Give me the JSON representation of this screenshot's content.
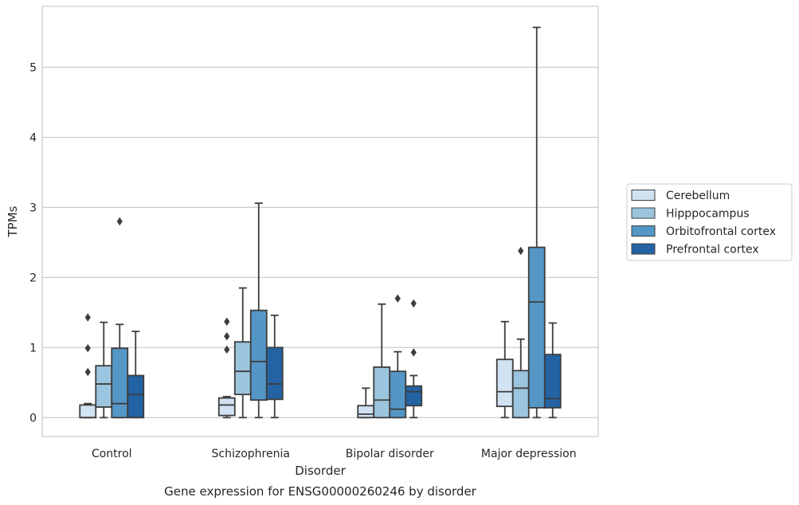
{
  "caption": "Gene expression for ENSG00000260246 by disorder",
  "chart_data": {
    "type": "box",
    "title": "",
    "xlabel": "Disorder",
    "ylabel": "TPMs",
    "ylim": [
      -0.27,
      5.87
    ],
    "yticks": [
      0,
      1,
      2,
      3,
      4,
      5
    ],
    "grid": "horizontal",
    "legend_position": "right",
    "categories": [
      "Control",
      "Schizophrenia",
      "Bipolar disorder",
      "Major depression"
    ],
    "series": [
      {
        "name": "Cerebellum",
        "color": "#d1e2f2",
        "boxes": [
          {
            "whisker_low": 0.0,
            "q1": 0.0,
            "median": 0.0,
            "q3": 0.18,
            "whisker_high": 0.2,
            "outliers": [
              0.65,
              0.99,
              1.43
            ]
          },
          {
            "whisker_low": 0.0,
            "q1": 0.03,
            "median": 0.18,
            "q3": 0.28,
            "whisker_high": 0.3,
            "outliers": [
              0.97,
              1.16,
              1.37
            ]
          },
          {
            "whisker_low": 0.0,
            "q1": 0.0,
            "median": 0.05,
            "q3": 0.17,
            "whisker_high": 0.42,
            "outliers": []
          },
          {
            "whisker_low": 0.0,
            "q1": 0.16,
            "median": 0.37,
            "q3": 0.83,
            "whisker_high": 1.37,
            "outliers": []
          }
        ]
      },
      {
        "name": "Hipppocampus",
        "color": "#9bc5de",
        "boxes": [
          {
            "whisker_low": 0.0,
            "q1": 0.15,
            "median": 0.48,
            "q3": 0.74,
            "whisker_high": 1.36,
            "outliers": []
          },
          {
            "whisker_low": 0.0,
            "q1": 0.33,
            "median": 0.66,
            "q3": 1.08,
            "whisker_high": 1.85,
            "outliers": []
          },
          {
            "whisker_low": 0.0,
            "q1": 0.0,
            "median": 0.25,
            "q3": 0.72,
            "whisker_high": 1.62,
            "outliers": []
          },
          {
            "whisker_low": 0.0,
            "q1": 0.0,
            "median": 0.42,
            "q3": 0.67,
            "whisker_high": 1.12,
            "outliers": [
              2.38
            ]
          }
        ]
      },
      {
        "name": "Orbitofrontal cortex",
        "color": "#5497c6",
        "boxes": [
          {
            "whisker_low": 0.0,
            "q1": 0.0,
            "median": 0.2,
            "q3": 0.99,
            "whisker_high": 1.33,
            "outliers": [
              2.8
            ]
          },
          {
            "whisker_low": 0.0,
            "q1": 0.25,
            "median": 0.8,
            "q3": 1.53,
            "whisker_high": 3.06,
            "outliers": []
          },
          {
            "whisker_low": 0.0,
            "q1": 0.0,
            "median": 0.12,
            "q3": 0.66,
            "whisker_high": 0.94,
            "outliers": [
              1.7
            ]
          },
          {
            "whisker_low": 0.0,
            "q1": 0.14,
            "median": 1.65,
            "q3": 2.43,
            "whisker_high": 5.57,
            "outliers": []
          }
        ]
      },
      {
        "name": "Prefrontal cortex",
        "color": "#2363a3",
        "boxes": [
          {
            "whisker_low": 0.0,
            "q1": 0.0,
            "median": 0.33,
            "q3": 0.6,
            "whisker_high": 1.23,
            "outliers": []
          },
          {
            "whisker_low": 0.0,
            "q1": 0.26,
            "median": 0.48,
            "q3": 1.0,
            "whisker_high": 1.46,
            "outliers": []
          },
          {
            "whisker_low": 0.0,
            "q1": 0.17,
            "median": 0.37,
            "q3": 0.45,
            "whisker_high": 0.6,
            "outliers": [
              0.93,
              1.63
            ]
          },
          {
            "whisker_low": 0.0,
            "q1": 0.14,
            "median": 0.27,
            "q3": 0.9,
            "whisker_high": 1.35,
            "outliers": []
          }
        ]
      }
    ]
  }
}
